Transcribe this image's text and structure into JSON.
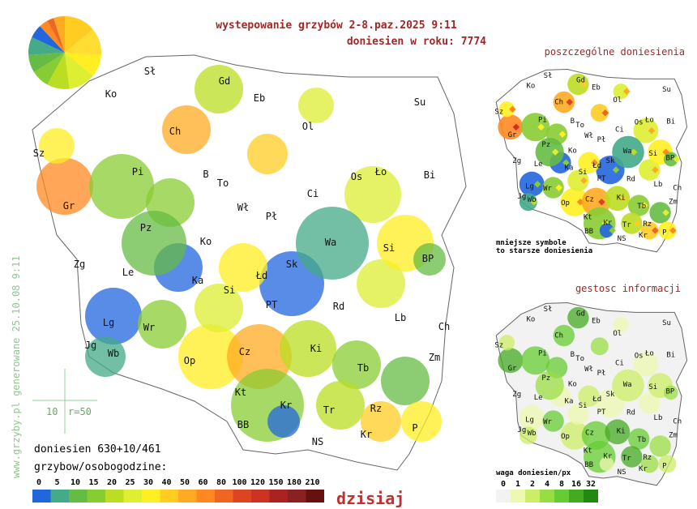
{
  "header": {
    "title": "wystepowanie grzybów 2-8.paz.2025  9:11",
    "count": "doniesien w roku: 7774"
  },
  "cities": [
    "Sł",
    "Ko",
    "Gd",
    "Eb",
    "Su",
    "Ol",
    "Ch",
    "Sz",
    "Pi",
    "B",
    "To",
    "Os",
    "Ło",
    "Bi",
    "Gr",
    "Ci",
    "Wł",
    "Pł",
    "Pz",
    "Ko",
    "Wa",
    "Si",
    "Zg",
    "Le",
    "Ka",
    "Łd",
    "Sk",
    "BP",
    "Si",
    "PT",
    "Rd",
    "Lg",
    "Wr",
    "Lb",
    "Ch",
    "Jg",
    "Wb",
    "Op",
    "Cz",
    "Ki",
    "Tb",
    "Zm",
    "Kt",
    "Kr",
    "Tr",
    "Rz",
    "BB",
    "NS",
    "Kr",
    "P"
  ],
  "reports_map": {
    "title": "poszczególne doniesienia",
    "note": [
      "mniejsze symbole",
      "to starsze doniesienia"
    ]
  },
  "density_map": {
    "title": "gestosc informacji",
    "legend_title": "waga doniesien/px",
    "legend_labels": [
      "0",
      "1",
      "2",
      "4",
      "8",
      "16",
      "32"
    ]
  },
  "legend": {
    "reports": "doniesien 630+10/461",
    "title": "grzybow/osobogodzine:",
    "labels": [
      "0",
      "5",
      "10",
      "15",
      "20",
      "25",
      "30",
      "40",
      "50",
      "60",
      "80",
      "100",
      "120",
      "150",
      "180",
      "210"
    ],
    "today": "dzisiaj"
  },
  "scale": {
    "value": "10",
    "radius": "r=50"
  },
  "side_note": "www.grzyby.pl generowane 25.10.08  9:11"
}
